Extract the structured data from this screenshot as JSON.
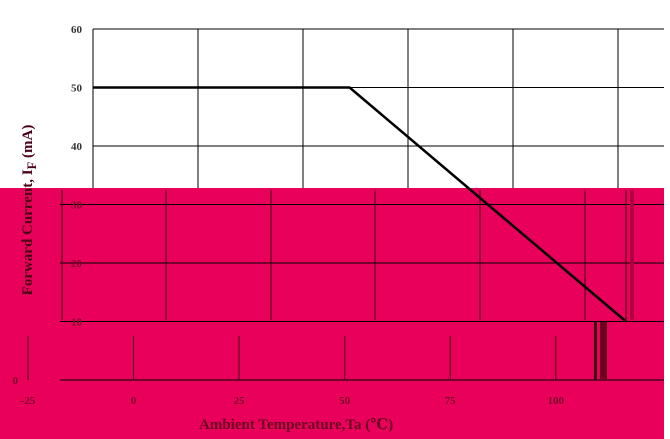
{
  "chart_data": {
    "type": "line",
    "ylabel": "Forward Current, I",
    "ylabel_sub": "F",
    "ylabel_unit": " (mA)",
    "xlabel": "Ambient Temperature,Ta (℃)",
    "x_ticks": [
      "-25",
      "0",
      "25",
      "50",
      "75",
      "100"
    ],
    "y_ticks": [
      "0",
      "10",
      "20",
      "30",
      "40",
      "50",
      "60"
    ],
    "xlim": [
      -25,
      110
    ],
    "ylim": [
      0,
      60
    ],
    "grid": true,
    "series": [
      {
        "x": [
          -25,
          40,
          110
        ],
        "y": [
          50,
          50,
          10
        ]
      }
    ],
    "colors": {
      "line": "#000000",
      "grid": "#000000",
      "overlay": "#e8005a",
      "tick_text_top": "#333333",
      "tick_text_overlay": "#7a0026"
    }
  }
}
